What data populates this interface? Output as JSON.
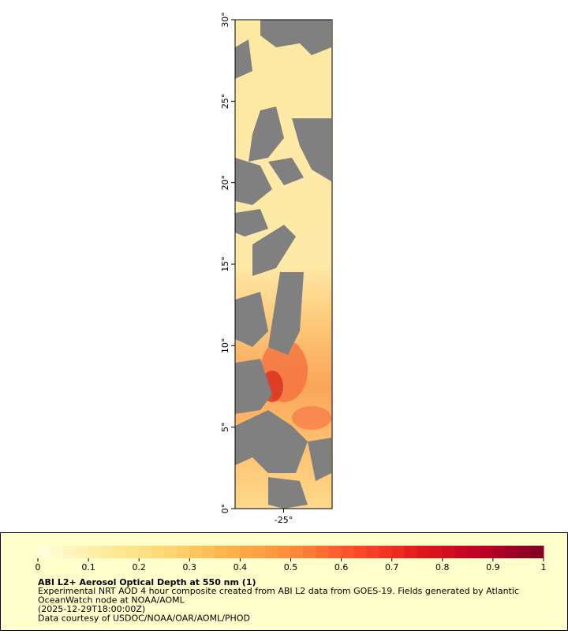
{
  "chart_data": {
    "type": "map",
    "title": "ABI L2+ Aerosol Optical Depth at 550 nm (1)",
    "subtitle_lines": [
      "Experimental NRT AOD 4 hour composite created from ABI L2 data from GOES-19. Fields generated by Atlantic",
      "OceanWatch node at NOAA/AOML",
      "(2025-12-29T18:00:00Z)",
      "Data courtesy of USDOC/NOAA/OAR/AOML/PHOD"
    ],
    "ylim": [
      0,
      30
    ],
    "yticks": [
      {
        "value": 0,
        "label": "0°"
      },
      {
        "value": 5,
        "label": "5°"
      },
      {
        "value": 10,
        "label": "10°"
      },
      {
        "value": 15,
        "label": "15°"
      },
      {
        "value": 20,
        "label": "20°"
      },
      {
        "value": 25,
        "label": "25°"
      },
      {
        "value": 30,
        "label": "30°"
      }
    ],
    "xlim": [
      -28,
      -22
    ],
    "xticks": [
      {
        "value": -25,
        "label": "-25°"
      }
    ],
    "colorbar": {
      "range": [
        0,
        1
      ],
      "ticks": [
        0,
        0.1,
        0.2,
        0.3,
        0.4,
        0.5,
        0.6,
        0.7,
        0.8,
        0.9,
        1
      ],
      "colors": [
        "#fffee0",
        "#ffeda0",
        "#fed976",
        "#feb24c",
        "#fd8d3c",
        "#fc4e2a",
        "#e31a1c",
        "#bd0026",
        "#800026"
      ]
    }
  }
}
